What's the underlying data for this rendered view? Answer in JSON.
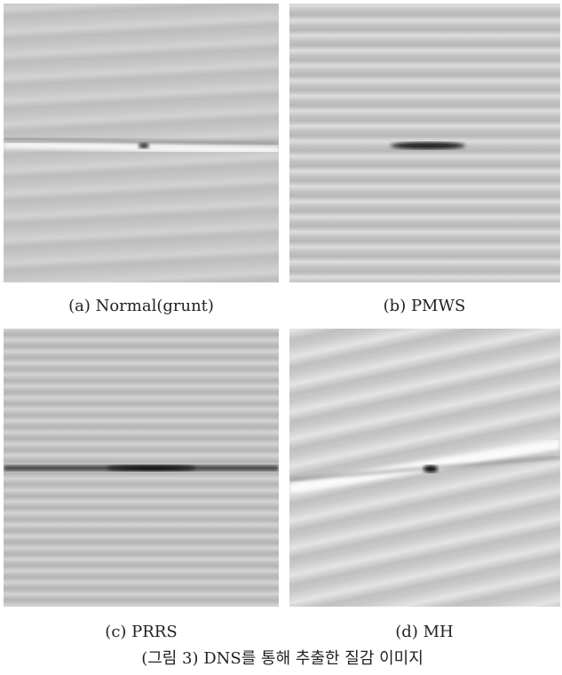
{
  "figures": [
    {
      "label": "(a) Normal(grunt)"
    },
    {
      "label": "(b) PMWS"
    },
    {
      "label": "(c) PRRS"
    },
    {
      "label": "(d) MH"
    }
  ],
  "caption": "(그림 3) DNS를 통해 추출한 질감 이미지"
}
